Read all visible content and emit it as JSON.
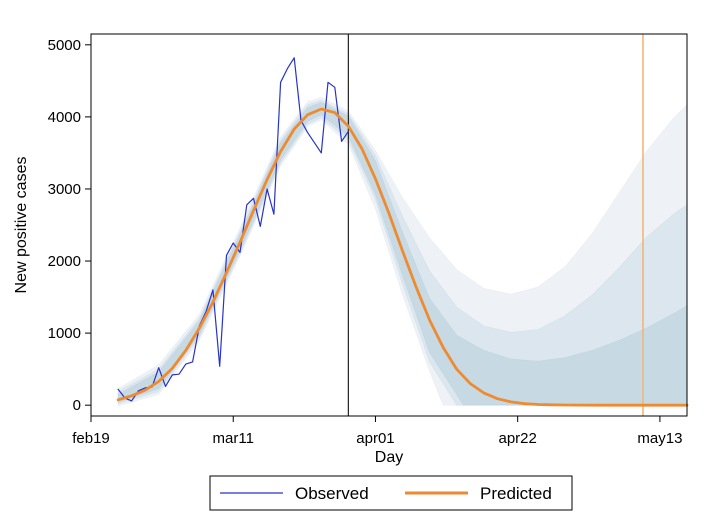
{
  "chart_data": {
    "type": "line",
    "xlabel": "Day",
    "ylabel": "New positive cases",
    "x_axis": {
      "unit": "days since feb19",
      "range_days": [
        0,
        88
      ],
      "ticks": [
        {
          "day": 0,
          "label": "feb19"
        },
        {
          "day": 21,
          "label": "mar11"
        },
        {
          "day": 42,
          "label": "apr01"
        },
        {
          "day": 63,
          "label": "apr22"
        },
        {
          "day": 84,
          "label": "may13"
        }
      ]
    },
    "y_axis": {
      "range": [
        -150,
        5150
      ],
      "ticks": [
        {
          "value": 0,
          "label": "0"
        },
        {
          "value": 1000,
          "label": "1000"
        },
        {
          "value": 2000,
          "label": "2000"
        },
        {
          "value": 3000,
          "label": "3000"
        },
        {
          "value": 4000,
          "label": "4000"
        },
        {
          "value": 5000,
          "label": "5000"
        }
      ]
    },
    "grid": false,
    "legend_position": "bottom",
    "vertical_lines": [
      {
        "day": 38,
        "color": "#222222"
      },
      {
        "day": 81.5,
        "color": "#f0b67a"
      }
    ],
    "series": [
      {
        "name": "Observed",
        "color": "#2733c9",
        "points": [
          [
            4,
            220
          ],
          [
            5,
            100
          ],
          [
            6,
            60
          ],
          [
            7,
            200
          ],
          [
            8,
            240
          ],
          [
            9,
            250
          ],
          [
            10,
            520
          ],
          [
            11,
            260
          ],
          [
            12,
            420
          ],
          [
            13,
            430
          ],
          [
            14,
            570
          ],
          [
            15,
            600
          ],
          [
            16,
            1100
          ],
          [
            17,
            1300
          ],
          [
            18,
            1600
          ],
          [
            19,
            540
          ],
          [
            20,
            2080
          ],
          [
            21,
            2250
          ],
          [
            22,
            2120
          ],
          [
            23,
            2780
          ],
          [
            24,
            2870
          ],
          [
            25,
            2480
          ],
          [
            26,
            3000
          ],
          [
            27,
            2650
          ],
          [
            28,
            4480
          ],
          [
            29,
            4670
          ],
          [
            30,
            4820
          ],
          [
            31,
            3950
          ],
          [
            32,
            3780
          ],
          [
            33,
            3640
          ],
          [
            34,
            3500
          ],
          [
            35,
            4480
          ],
          [
            36,
            4410
          ],
          [
            37,
            3660
          ],
          [
            38,
            3800
          ]
        ]
      },
      {
        "name": "Predicted",
        "color": "#ee8a30",
        "points": [
          [
            4,
            75
          ],
          [
            6,
            130
          ],
          [
            8,
            210
          ],
          [
            10,
            330
          ],
          [
            12,
            510
          ],
          [
            14,
            760
          ],
          [
            16,
            1070
          ],
          [
            18,
            1430
          ],
          [
            20,
            1840
          ],
          [
            22,
            2260
          ],
          [
            24,
            2700
          ],
          [
            26,
            3130
          ],
          [
            28,
            3520
          ],
          [
            30,
            3830
          ],
          [
            32,
            4030
          ],
          [
            34,
            4110
          ],
          [
            36,
            4060
          ],
          [
            38,
            3870
          ],
          [
            40,
            3560
          ],
          [
            42,
            3140
          ],
          [
            44,
            2660
          ],
          [
            46,
            2140
          ],
          [
            48,
            1640
          ],
          [
            50,
            1180
          ],
          [
            52,
            800
          ],
          [
            54,
            500
          ],
          [
            56,
            300
          ],
          [
            58,
            170
          ],
          [
            60,
            90
          ],
          [
            62,
            45
          ],
          [
            64,
            22
          ],
          [
            66,
            10
          ],
          [
            68,
            5
          ],
          [
            70,
            2
          ],
          [
            72,
            1
          ],
          [
            75,
            0
          ],
          [
            80,
            0
          ],
          [
            85,
            0
          ],
          [
            88,
            0
          ]
        ]
      }
    ],
    "confidence_bands": [
      {
        "level": "wide",
        "color": "#dde6ee",
        "opacity": 0.5,
        "upper": [
          [
            4,
            230
          ],
          [
            10,
            560
          ],
          [
            16,
            1260
          ],
          [
            22,
            2460
          ],
          [
            28,
            3720
          ],
          [
            32,
            4210
          ],
          [
            34,
            4270
          ],
          [
            38,
            4080
          ],
          [
            42,
            3530
          ],
          [
            46,
            2880
          ],
          [
            50,
            2320
          ],
          [
            54,
            1880
          ],
          [
            58,
            1620
          ],
          [
            62,
            1540
          ],
          [
            66,
            1640
          ],
          [
            70,
            1920
          ],
          [
            74,
            2380
          ],
          [
            78,
            2950
          ],
          [
            82,
            3520
          ],
          [
            86,
            3980
          ],
          [
            88,
            4170
          ]
        ],
        "lower": [
          [
            4,
            -10
          ],
          [
            10,
            150
          ],
          [
            16,
            900
          ],
          [
            22,
            2070
          ],
          [
            28,
            3320
          ],
          [
            32,
            3870
          ],
          [
            34,
            3960
          ],
          [
            38,
            3620
          ],
          [
            42,
            2720
          ],
          [
            46,
            1530
          ],
          [
            50,
            470
          ],
          [
            52,
            0
          ],
          [
            88,
            0
          ]
        ]
      },
      {
        "level": "mid",
        "color": "#c9dae6",
        "opacity": 0.5,
        "upper": [
          [
            4,
            190
          ],
          [
            10,
            500
          ],
          [
            16,
            1210
          ],
          [
            22,
            2410
          ],
          [
            28,
            3680
          ],
          [
            32,
            4170
          ],
          [
            34,
            4230
          ],
          [
            38,
            4040
          ],
          [
            42,
            3460
          ],
          [
            46,
            2620
          ],
          [
            50,
            1860
          ],
          [
            54,
            1360
          ],
          [
            58,
            1100
          ],
          [
            62,
            1010
          ],
          [
            66,
            1050
          ],
          [
            70,
            1240
          ],
          [
            74,
            1530
          ],
          [
            78,
            1910
          ],
          [
            82,
            2330
          ],
          [
            86,
            2650
          ],
          [
            88,
            2780
          ]
        ],
        "lower": [
          [
            4,
            20
          ],
          [
            10,
            190
          ],
          [
            16,
            940
          ],
          [
            22,
            2110
          ],
          [
            28,
            3360
          ],
          [
            32,
            3900
          ],
          [
            34,
            3990
          ],
          [
            38,
            3680
          ],
          [
            42,
            2850
          ],
          [
            46,
            1680
          ],
          [
            50,
            600
          ],
          [
            54,
            0
          ],
          [
            88,
            0
          ]
        ]
      },
      {
        "level": "narrow",
        "color": "#b6cfdd",
        "opacity": 0.55,
        "upper": [
          [
            4,
            150
          ],
          [
            10,
            460
          ],
          [
            16,
            1170
          ],
          [
            22,
            2370
          ],
          [
            28,
            3640
          ],
          [
            32,
            4130
          ],
          [
            34,
            4200
          ],
          [
            38,
            4010
          ],
          [
            42,
            3390
          ],
          [
            46,
            2400
          ],
          [
            50,
            1480
          ],
          [
            54,
            970
          ],
          [
            58,
            760
          ],
          [
            62,
            640
          ],
          [
            66,
            610
          ],
          [
            70,
            660
          ],
          [
            74,
            760
          ],
          [
            78,
            900
          ],
          [
            82,
            1070
          ],
          [
            86,
            1270
          ],
          [
            88,
            1380
          ]
        ],
        "lower": [
          [
            4,
            40
          ],
          [
            10,
            230
          ],
          [
            16,
            980
          ],
          [
            22,
            2150
          ],
          [
            28,
            3400
          ],
          [
            32,
            3940
          ],
          [
            34,
            4030
          ],
          [
            38,
            3730
          ],
          [
            42,
            2920
          ],
          [
            46,
            1800
          ],
          [
            50,
            730
          ],
          [
            55,
            0
          ],
          [
            88,
            0
          ]
        ]
      }
    ]
  },
  "legend": {
    "items": [
      {
        "label": "Observed",
        "color": "#2733c9"
      },
      {
        "label": "Predicted",
        "color": "#ee8a30"
      }
    ]
  }
}
